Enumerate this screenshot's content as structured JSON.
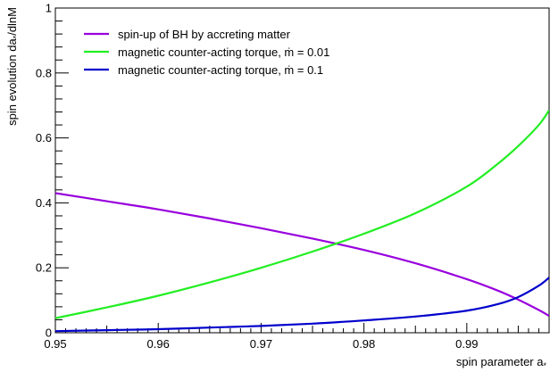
{
  "chart_data": {
    "type": "line",
    "title": "",
    "xlabel": "spin parameter a",
    "xlabel_subscript": "*",
    "ylabel": "spin evolution da",
    "ylabel_subscript": "*",
    "ylabel_suffix": "/dlnM",
    "xlim": [
      0.95,
      0.998
    ],
    "ylim": [
      0,
      1
    ],
    "x_ticks": [
      0.95,
      0.96,
      0.97,
      0.98,
      0.99
    ],
    "x_tick_labels": [
      "0.95",
      "0.96",
      "0.97",
      "0.98",
      "0.99"
    ],
    "y_ticks": [
      0,
      0.2,
      0.4,
      0.6,
      0.8,
      1
    ],
    "y_tick_labels": [
      "0",
      "0.2",
      "0.4",
      "0.6",
      "0.8",
      "1"
    ],
    "grid": false,
    "legend_position": "top-left",
    "series": [
      {
        "name": "spin-up of BH by accreting matter",
        "color": "#9900dd",
        "x": [
          0.95,
          0.955,
          0.96,
          0.965,
          0.97,
          0.975,
          0.98,
          0.985,
          0.99,
          0.993,
          0.995,
          0.997,
          0.998
        ],
        "y": [
          0.43,
          0.405,
          0.38,
          0.352,
          0.322,
          0.29,
          0.255,
          0.214,
          0.165,
          0.13,
          0.102,
          0.07,
          0.052
        ]
      },
      {
        "name": "magnetic counter-acting torque, ṁ = 0.01",
        "color": "#22ee22",
        "x": [
          0.95,
          0.955,
          0.96,
          0.965,
          0.97,
          0.975,
          0.98,
          0.985,
          0.99,
          0.993,
          0.995,
          0.997,
          0.998
        ],
        "y": [
          0.045,
          0.078,
          0.114,
          0.155,
          0.2,
          0.25,
          0.305,
          0.368,
          0.45,
          0.52,
          0.575,
          0.64,
          0.685
        ]
      },
      {
        "name": "magnetic counter-acting torque, ṁ = 0.1",
        "color": "#0000cc",
        "x": [
          0.95,
          0.955,
          0.96,
          0.965,
          0.97,
          0.975,
          0.98,
          0.985,
          0.99,
          0.993,
          0.995,
          0.997,
          0.998
        ],
        "y": [
          0.005,
          0.008,
          0.011,
          0.016,
          0.021,
          0.028,
          0.038,
          0.05,
          0.068,
          0.088,
          0.11,
          0.145,
          0.17
        ]
      }
    ]
  }
}
